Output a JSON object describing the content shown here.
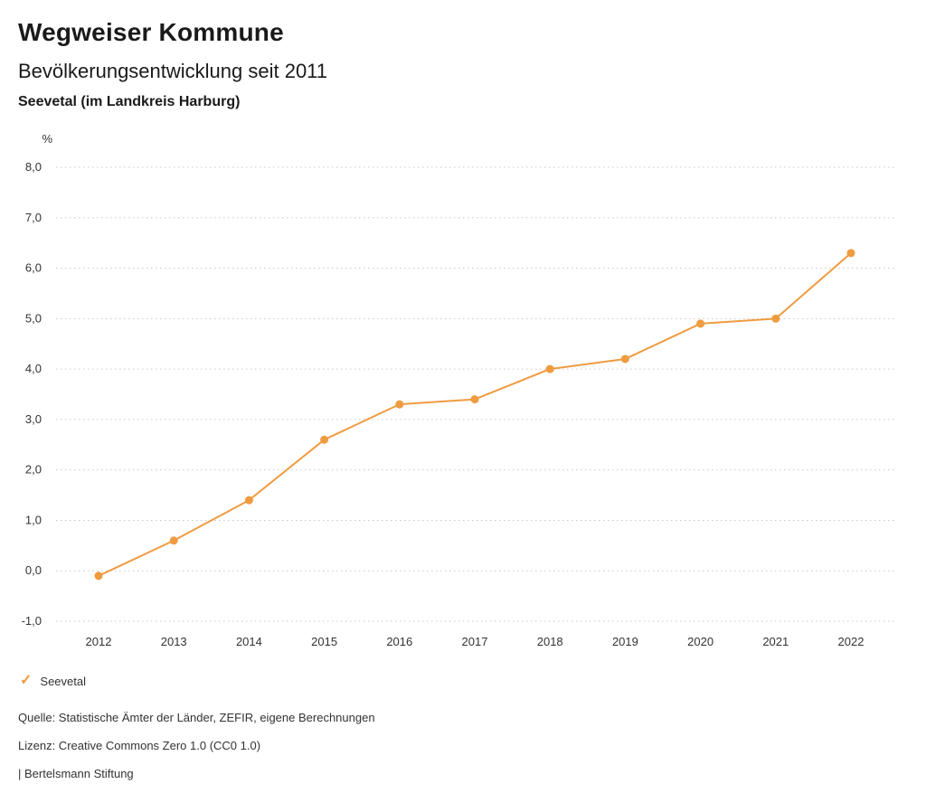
{
  "header": {
    "title": "Wegweiser Kommune",
    "subtitle": "Bevölkerungsentwicklung seit 2011",
    "region": "Seevetal (im Landkreis Harburg)"
  },
  "chart_data": {
    "type": "line",
    "title": "Bevölkerungsentwicklung seit 2011",
    "unit_label": "%",
    "x": [
      "2012",
      "2013",
      "2014",
      "2015",
      "2016",
      "2017",
      "2018",
      "2019",
      "2020",
      "2021",
      "2022"
    ],
    "series": [
      {
        "name": "Seevetal",
        "color": "#ef9b40",
        "values": [
          -0.1,
          0.6,
          1.4,
          2.6,
          3.3,
          3.4,
          4.0,
          4.2,
          4.9,
          5.0,
          6.3
        ]
      }
    ],
    "ylim": [
      -1.0,
      8.0
    ],
    "ytick_step": 1.0,
    "ytick_labels": [
      "8,0",
      "7,0",
      "6,0",
      "5,0",
      "4,0",
      "3,0",
      "2,0",
      "1,0",
      "0,0",
      "-1,0"
    ],
    "grid": "dotted-horizontal",
    "legend_position": "bottom-left",
    "gridline_color": "#c9c9c9",
    "tick_label_color": "#333333"
  },
  "legend": {
    "items": [
      {
        "label": "Seevetal",
        "color": "#ef9b40",
        "marker": "check"
      }
    ]
  },
  "footer": {
    "source": "Quelle: Statistische Ämter der Länder, ZEFIR, eigene Berechnungen",
    "license": "Lizenz: Creative Commons Zero 1.0 (CC0 1.0)",
    "attribution": "| Bertelsmann Stiftung"
  }
}
